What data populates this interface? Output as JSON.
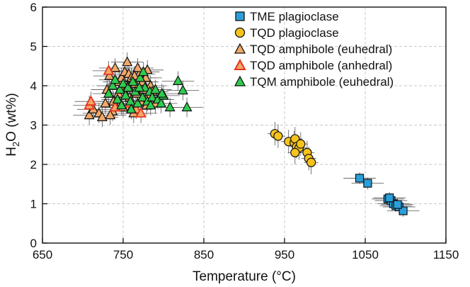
{
  "chart_data": {
    "type": "scatter",
    "xlabel": "Temperature (°C)",
    "ylabel_parts": [
      "H",
      "2",
      "O (wt%)"
    ],
    "xlim": [
      650,
      1150
    ],
    "ylim": [
      0,
      6
    ],
    "x_ticks": [
      650,
      750,
      850,
      950,
      1050,
      1150
    ],
    "y_ticks": [
      0,
      1,
      2,
      3,
      4,
      5,
      6
    ],
    "grid": true,
    "legend_position": "top-right",
    "series": [
      {
        "name": "TME plagioclase",
        "marker": "square",
        "color": "#2b9fd9",
        "error_x": 20,
        "error_y": 0.15,
        "points": [
          [
            1043,
            1.65
          ],
          [
            1053,
            1.52
          ],
          [
            1078,
            1.12
          ],
          [
            1082,
            1.08
          ],
          [
            1085,
            1.0
          ],
          [
            1088,
            0.95
          ],
          [
            1092,
            0.92
          ],
          [
            1097,
            0.82
          ],
          [
            1080,
            1.15
          ],
          [
            1090,
            0.98
          ]
        ]
      },
      {
        "name": "TQD plagioclase",
        "marker": "circle",
        "color": "#f6c21c",
        "error_x": 9,
        "error_y": 0.3,
        "points": [
          [
            938,
            2.78
          ],
          [
            942,
            2.72
          ],
          [
            955,
            2.58
          ],
          [
            962,
            2.55
          ],
          [
            963,
            2.65
          ],
          [
            965,
            2.45
          ],
          [
            968,
            2.42
          ],
          [
            963,
            2.3
          ],
          [
            970,
            2.52
          ],
          [
            978,
            2.3
          ],
          [
            980,
            2.15
          ],
          [
            983,
            2.05
          ]
        ]
      },
      {
        "name": "TQD amphibole (euhedral)",
        "marker": "triangle",
        "color": "#f2a868",
        "error_x": 20,
        "error_y": 0.25,
        "points": [
          [
            708,
            3.25
          ],
          [
            713,
            3.4
          ],
          [
            720,
            3.3
          ],
          [
            724,
            3.2
          ],
          [
            728,
            3.55
          ],
          [
            730,
            3.9
          ],
          [
            733,
            4.25
          ],
          [
            737,
            3.35
          ],
          [
            740,
            4.45
          ],
          [
            742,
            3.7
          ],
          [
            745,
            4.1
          ],
          [
            748,
            4.2
          ],
          [
            750,
            3.9
          ],
          [
            752,
            4.35
          ],
          [
            755,
            4.6
          ],
          [
            757,
            4.3
          ],
          [
            760,
            4.2
          ],
          [
            762,
            3.5
          ],
          [
            765,
            4.05
          ],
          [
            767,
            3.8
          ],
          [
            770,
            4.3
          ],
          [
            772,
            3.6
          ],
          [
            774,
            4.1
          ],
          [
            776,
            3.9
          ],
          [
            778,
            4.2
          ],
          [
            780,
            4.4
          ],
          [
            782,
            3.75
          ],
          [
            784,
            4.0
          ],
          [
            786,
            3.85
          ],
          [
            790,
            3.55
          ],
          [
            744,
            3.8
          ],
          [
            758,
            3.7
          ],
          [
            763,
            3.3
          ],
          [
            750,
            3.45
          ],
          [
            738,
            3.6
          ],
          [
            768,
            4.45
          ],
          [
            756,
            4.0
          ],
          [
            764,
            4.25
          ],
          [
            779,
            3.5
          ],
          [
            734,
            3.25
          ]
        ]
      },
      {
        "name": "TQD amphibole (anhedral)",
        "marker": "triangle",
        "color": "#f2a868",
        "stroke_color": "#e8321e",
        "error_x": 20,
        "error_y": 0.25,
        "points": [
          [
            708,
            3.5
          ],
          [
            710,
            3.6
          ],
          [
            732,
            4.38
          ],
          [
            740,
            3.45
          ],
          [
            758,
            3.55
          ],
          [
            766,
            3.4
          ],
          [
            772,
            3.3
          ]
        ]
      },
      {
        "name": "TQM amphibole (euhedral)",
        "marker": "triangle",
        "color": "#2ecc4e",
        "error_x": 20,
        "error_y": 0.25,
        "points": [
          [
            732,
            3.8
          ],
          [
            737,
            4.0
          ],
          [
            740,
            4.15
          ],
          [
            743,
            3.65
          ],
          [
            746,
            3.9
          ],
          [
            750,
            4.05
          ],
          [
            753,
            3.75
          ],
          [
            756,
            3.95
          ],
          [
            759,
            3.6
          ],
          [
            762,
            4.1
          ],
          [
            765,
            3.85
          ],
          [
            768,
            3.55
          ],
          [
            771,
            4.2
          ],
          [
            774,
            3.7
          ],
          [
            777,
            3.95
          ],
          [
            780,
            3.6
          ],
          [
            783,
            3.85
          ],
          [
            786,
            3.7
          ],
          [
            790,
            3.9
          ],
          [
            793,
            3.65
          ],
          [
            797,
            3.55
          ],
          [
            800,
            3.75
          ],
          [
            808,
            3.45
          ],
          [
            818,
            4.12
          ],
          [
            824,
            3.88
          ],
          [
            829,
            3.45
          ],
          [
            775,
            4.35
          ],
          [
            760,
            3.4
          ],
          [
            748,
            3.5
          ],
          [
            784,
            3.5
          ],
          [
            798,
            3.8
          ],
          [
            770,
            3.95
          ]
        ]
      }
    ]
  }
}
